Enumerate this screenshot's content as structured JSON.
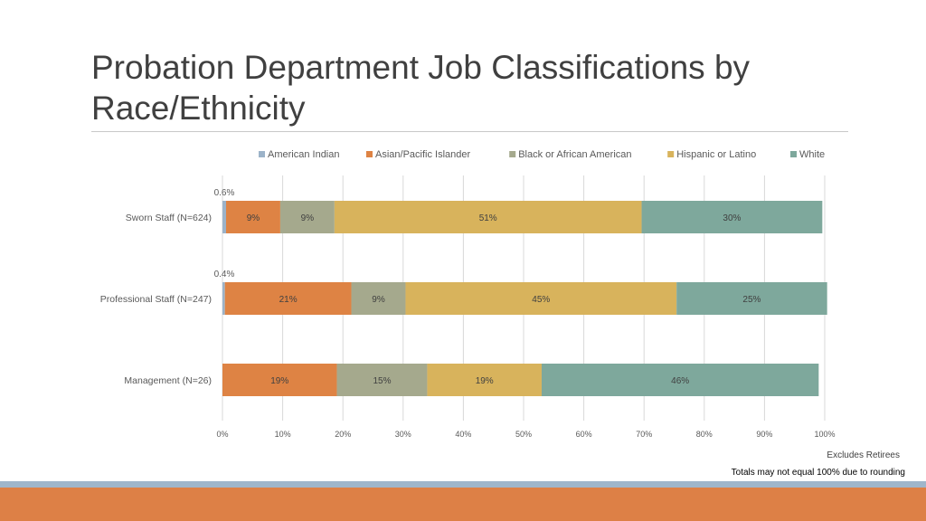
{
  "slide": {
    "title": "Probation Department Job Classifications by Race/Ethnicity",
    "footnotes": [
      "Excludes Retirees",
      "Totals may not equal 100% due to rounding"
    ]
  },
  "theme": {
    "accent_bar_blue": "#9fb6ca",
    "accent_bar_orange": "#dd8046"
  },
  "chart_data": {
    "type": "bar",
    "orientation": "horizontal",
    "stacked": "percent",
    "title": "",
    "xlabel": "",
    "ylabel": "",
    "xlim": [
      0,
      100
    ],
    "x_ticks": [
      "0%",
      "10%",
      "20%",
      "30%",
      "40%",
      "50%",
      "60%",
      "70%",
      "80%",
      "90%",
      "100%"
    ],
    "grid": "vertical",
    "legend_position": "top",
    "categories": [
      "Sworn Staff (N=624)",
      "Professional Staff (N=247)",
      "Management (N=26)"
    ],
    "series": [
      {
        "name": "American Indian",
        "color": "#9cb3c9",
        "values": [
          0.6,
          0.4,
          0
        ],
        "labels": [
          "0.6%",
          "0.4%",
          ""
        ],
        "label_position": "above"
      },
      {
        "name": "Asian/Pacific Islander",
        "color": "#de8344",
        "values": [
          9,
          21,
          19
        ],
        "labels": [
          "9%",
          "21%",
          "19%"
        ]
      },
      {
        "name": "Black or African American",
        "color": "#a5a98d",
        "values": [
          9,
          9,
          15
        ],
        "labels": [
          "9%",
          "9%",
          "15%"
        ]
      },
      {
        "name": "Hispanic or Latino",
        "color": "#d8b35c",
        "values": [
          51,
          45,
          19
        ],
        "labels": [
          "51%",
          "45%",
          "19%"
        ]
      },
      {
        "name": "White",
        "color": "#7ea89c",
        "values": [
          30,
          25,
          46
        ],
        "labels": [
          "30%",
          "25%",
          "46%"
        ]
      }
    ]
  }
}
